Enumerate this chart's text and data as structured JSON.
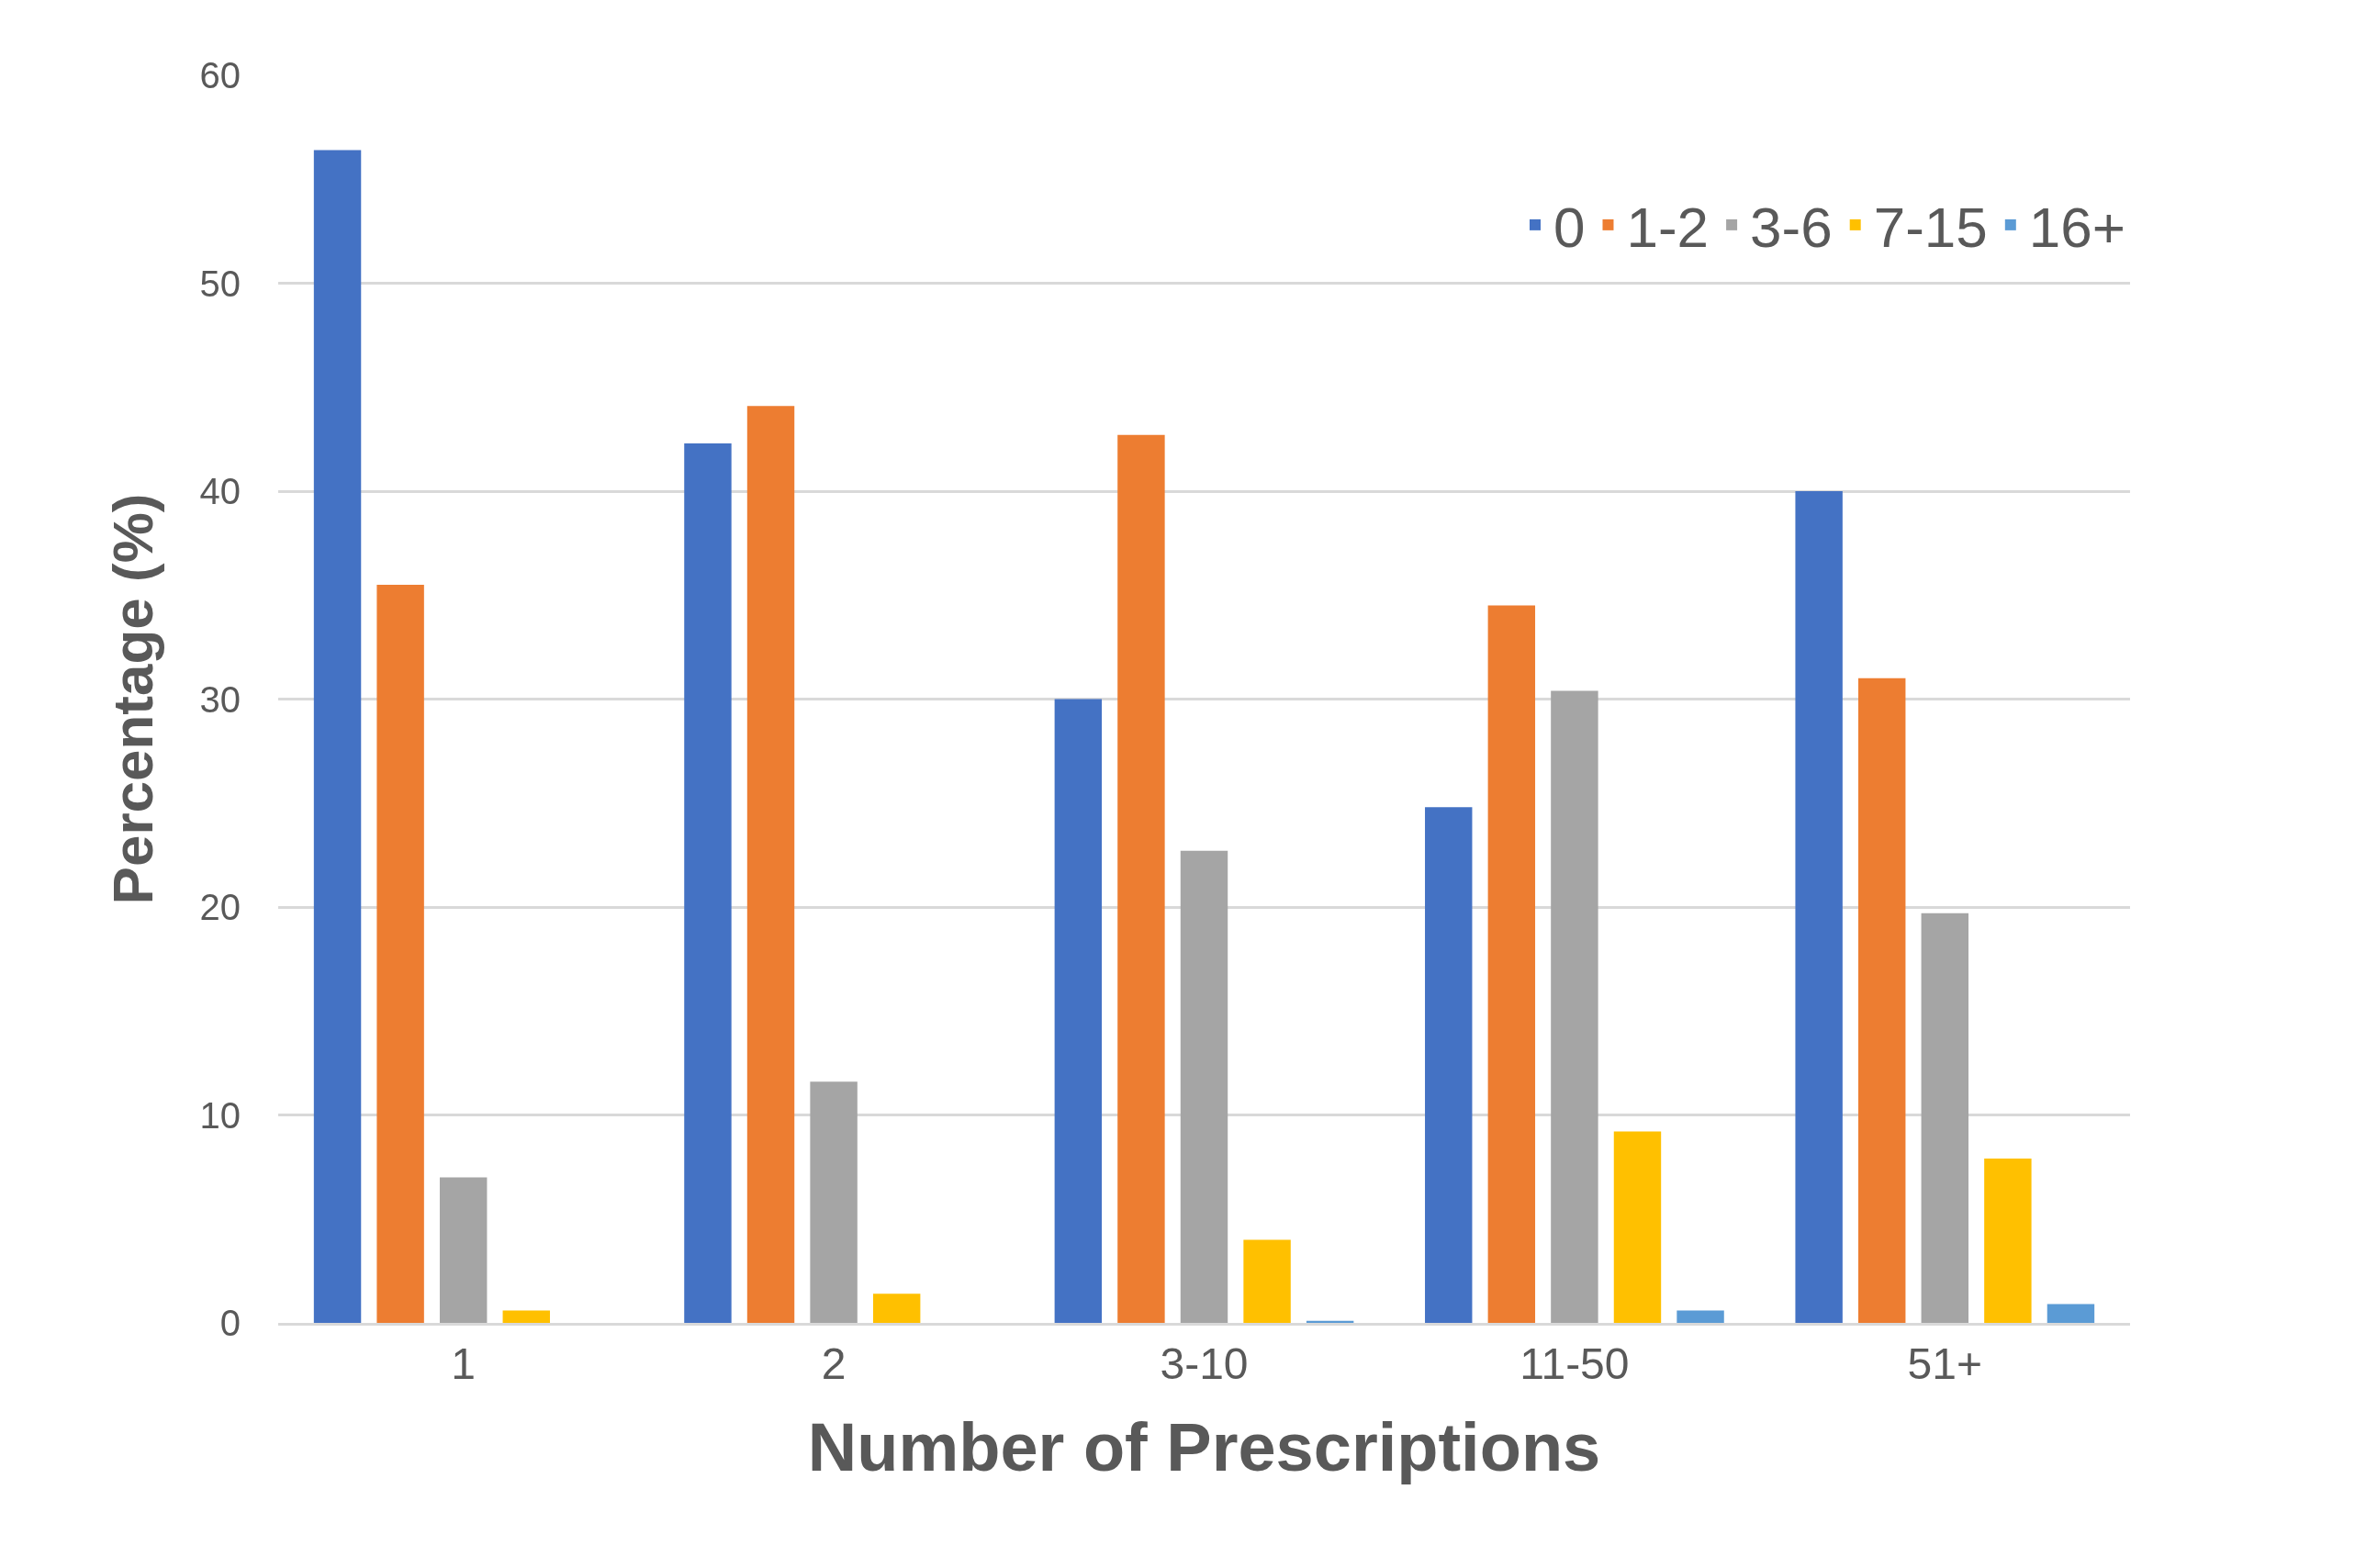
{
  "chart_data": {
    "type": "bar",
    "xlabel": "Number of Prescriptions",
    "ylabel": "Percentage (%)",
    "categories": [
      "1",
      "2",
      "3-10",
      "11-50",
      "51+"
    ],
    "series": [
      {
        "name": "0",
        "color": "#4472c4",
        "values": [
          56.4,
          42.3,
          30.0,
          24.8,
          40.0
        ]
      },
      {
        "name": "1-2",
        "color": "#ed7d31",
        "values": [
          35.5,
          44.1,
          42.7,
          34.5,
          31.0
        ]
      },
      {
        "name": "3-6",
        "color": "#a5a5a5",
        "values": [
          7.0,
          11.6,
          22.7,
          30.4,
          19.7
        ]
      },
      {
        "name": "7-15",
        "color": "#ffc000",
        "values": [
          0.6,
          1.4,
          4.0,
          9.2,
          7.9
        ]
      },
      {
        "name": "16+",
        "color": "#5b9bd5",
        "values": [
          0,
          0,
          0.1,
          0.6,
          0.9
        ]
      }
    ],
    "ylim": [
      0,
      60
    ],
    "yticks": [
      0,
      10,
      20,
      30,
      40,
      50,
      60
    ],
    "grid": "y",
    "legend": "top right"
  }
}
